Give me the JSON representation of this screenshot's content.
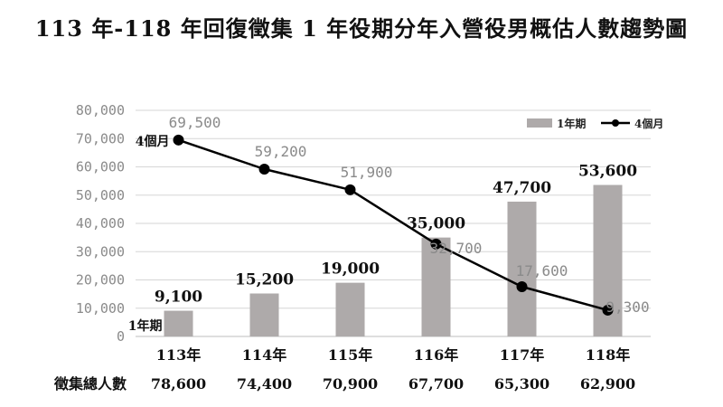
{
  "title": "113 年-118 年回復徵集 1 年役期分年入營役男概估人數趨勢圖",
  "chart_data": {
    "type": "bar",
    "title": "113 年-118 年回復徵集 1 年役期分年入營役男概估人數趨勢圖",
    "categories": [
      "113年",
      "114年",
      "115年",
      "116年",
      "117年",
      "118年"
    ],
    "ylim": [
      0,
      80000
    ],
    "yticks": [
      0,
      10000,
      20000,
      30000,
      40000,
      50000,
      60000,
      70000,
      80000
    ],
    "ytick_labels": [
      "0",
      "10,000",
      "20,000",
      "30,000",
      "40,000",
      "50,000",
      "60,000",
      "70,000",
      "80,000"
    ],
    "grid": true,
    "legend_position": "top-right",
    "series": [
      {
        "name": "1年期",
        "type": "bar",
        "color": "#aeaaaa",
        "tag": "1年期",
        "values": [
          9100,
          15200,
          19000,
          35000,
          47700,
          53600
        ],
        "labels": [
          "9,100",
          "15,200",
          "19,000",
          "35,000",
          "47,700",
          "53,600"
        ]
      },
      {
        "name": "4個月",
        "type": "line",
        "color": "#000000",
        "tag": "4個月",
        "values": [
          69500,
          59200,
          51900,
          32700,
          17600,
          9300
        ],
        "labels": [
          "69,500",
          "59,200",
          "51,900",
          "32,700",
          "17,600",
          "9,300"
        ]
      }
    ],
    "totals": {
      "label": "徵集總人數",
      "values": [
        "78,600",
        "74,400",
        "70,900",
        "67,700",
        "65,300",
        "62,900"
      ]
    }
  }
}
